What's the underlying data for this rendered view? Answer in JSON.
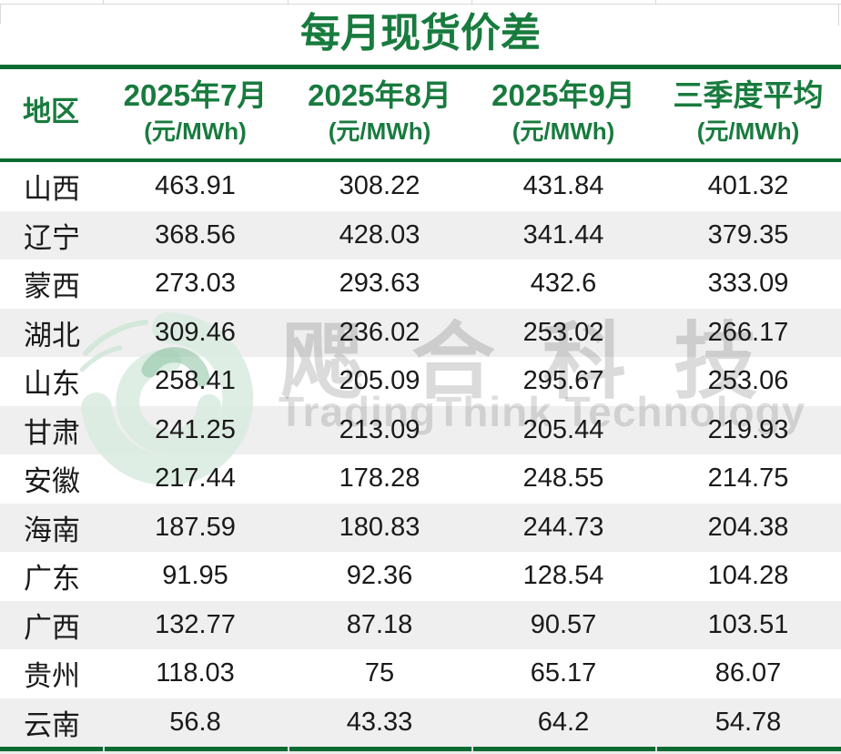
{
  "title": "每月现货价差",
  "table": {
    "region_header": "地区",
    "columns": [
      {
        "label": "2025年7月",
        "unit": "(元/MWh)"
      },
      {
        "label": "2025年8月",
        "unit": "(元/MWh)"
      },
      {
        "label": "2025年9月",
        "unit": "(元/MWh)"
      },
      {
        "label": "三季度平均",
        "unit": "(元/MWh)"
      }
    ],
    "rows": [
      {
        "region": "山西",
        "values": [
          "463.91",
          "308.22",
          "431.84",
          "401.32"
        ]
      },
      {
        "region": "辽宁",
        "values": [
          "368.56",
          "428.03",
          "341.44",
          "379.35"
        ]
      },
      {
        "region": "蒙西",
        "values": [
          "273.03",
          "293.63",
          "432.6",
          "333.09"
        ]
      },
      {
        "region": "湖北",
        "values": [
          "309.46",
          "236.02",
          "253.02",
          "266.17"
        ]
      },
      {
        "region": "山东",
        "values": [
          "258.41",
          "205.09",
          "295.67",
          "253.06"
        ]
      },
      {
        "region": "甘肃",
        "values": [
          "241.25",
          "213.09",
          "205.44",
          "219.93"
        ]
      },
      {
        "region": "安徽",
        "values": [
          "217.44",
          "178.28",
          "248.55",
          "214.75"
        ]
      },
      {
        "region": "海南",
        "values": [
          "187.59",
          "180.83",
          "244.73",
          "204.38"
        ]
      },
      {
        "region": "广东",
        "values": [
          "91.95",
          "92.36",
          "128.54",
          "104.28"
        ]
      },
      {
        "region": "广西",
        "values": [
          "132.77",
          "87.18",
          "90.57",
          "103.51"
        ]
      },
      {
        "region": "贵州",
        "values": [
          "118.03",
          "75",
          "65.17",
          "86.07"
        ]
      },
      {
        "region": "云南",
        "values": [
          "56.8",
          "43.33",
          "64.2",
          "54.78"
        ]
      }
    ]
  },
  "watermark": {
    "logo_icon": "green-swirl-logo",
    "cn_text": "飔合科技",
    "en_text": "TradingThink Technology"
  },
  "colors": {
    "header_green": "#187B3E",
    "line_green": "#0C6B32",
    "band_gray": "#EFEFEF",
    "grid_gray": "#D9D9D9",
    "cell_text": "#1A1A1A",
    "watermark_logo_green": "#D9ECE1"
  },
  "chart_data": {
    "type": "table",
    "title": "每月现货价差",
    "columns": [
      "地区",
      "2025年7月 (元/MWh)",
      "2025年8月 (元/MWh)",
      "2025年9月 (元/MWh)",
      "三季度平均 (元/MWh)"
    ],
    "rows": [
      [
        "山西",
        463.91,
        308.22,
        431.84,
        401.32
      ],
      [
        "辽宁",
        368.56,
        428.03,
        341.44,
        379.35
      ],
      [
        "蒙西",
        273.03,
        293.63,
        432.6,
        333.09
      ],
      [
        "湖北",
        309.46,
        236.02,
        253.02,
        266.17
      ],
      [
        "山东",
        258.41,
        205.09,
        295.67,
        253.06
      ],
      [
        "甘肃",
        241.25,
        213.09,
        205.44,
        219.93
      ],
      [
        "安徽",
        217.44,
        178.28,
        248.55,
        214.75
      ],
      [
        "海南",
        187.59,
        180.83,
        244.73,
        204.38
      ],
      [
        "广东",
        91.95,
        92.36,
        128.54,
        104.28
      ],
      [
        "广西",
        132.77,
        87.18,
        90.57,
        103.51
      ],
      [
        "贵州",
        118.03,
        75,
        65.17,
        86.07
      ],
      [
        "云南",
        56.8,
        43.33,
        64.2,
        54.78
      ]
    ]
  }
}
